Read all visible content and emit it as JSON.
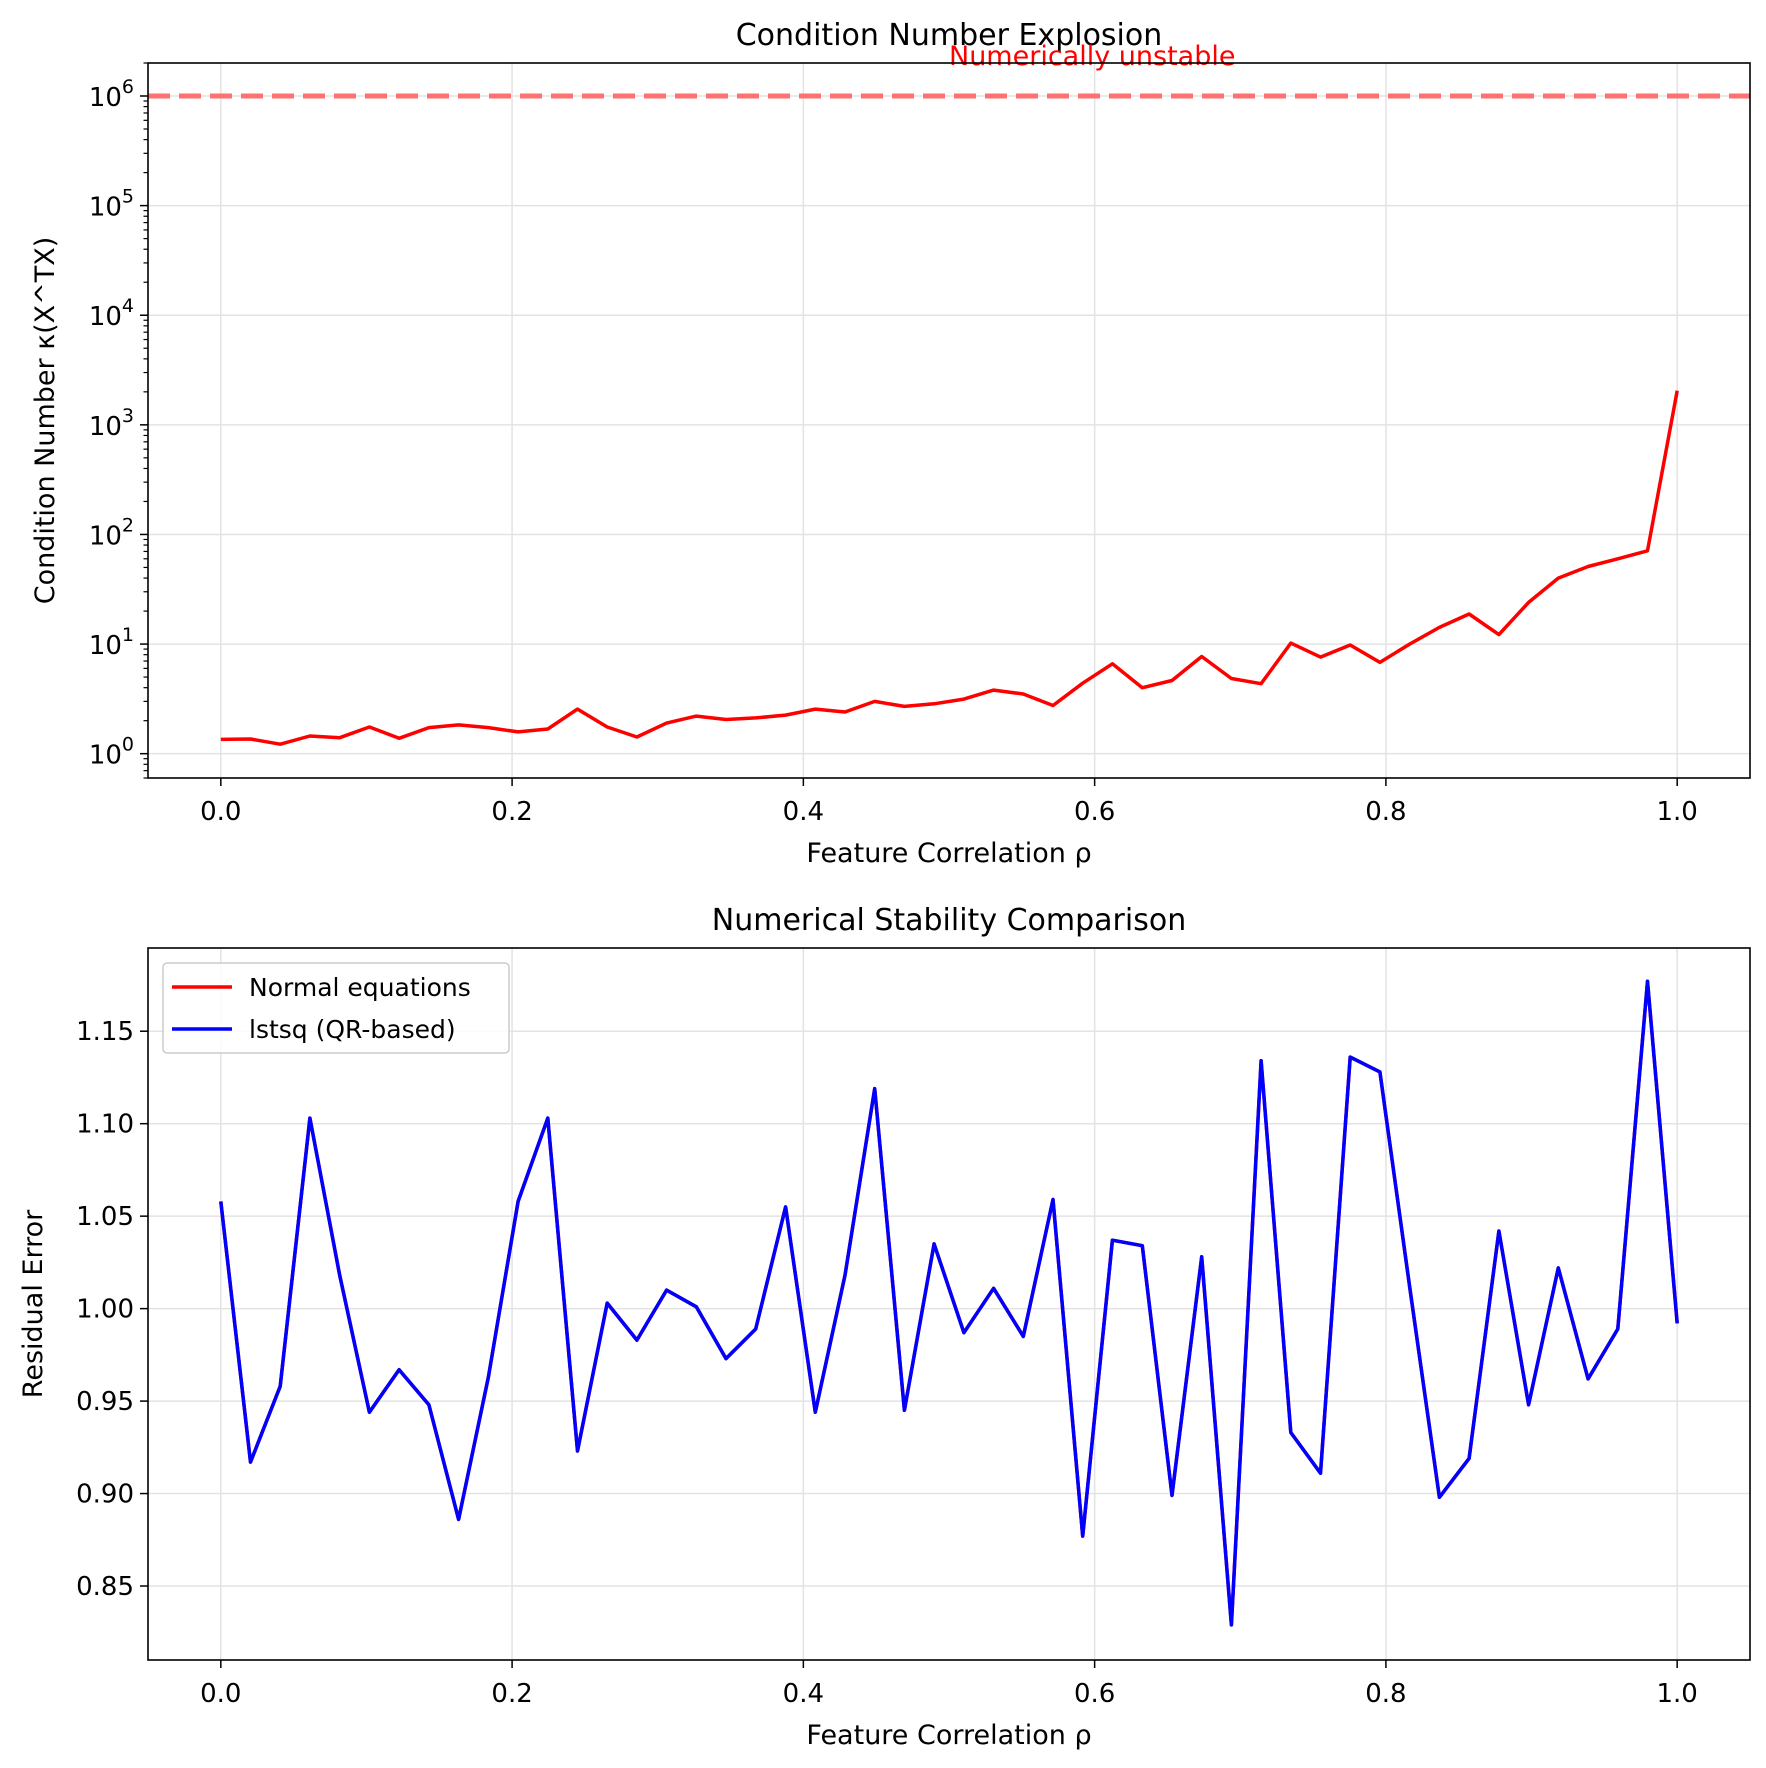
{
  "chart_data": [
    {
      "type": "line",
      "title": "Condition Number Explosion",
      "xlabel": "Feature Correlation ρ",
      "ylabel": "Condition Number κ(X^TX)",
      "yscale": "log",
      "xlim": [
        -0.05,
        1.05
      ],
      "ylim": [
        0.6,
        2000000
      ],
      "grid": true,
      "xticks": [
        "0.0",
        "0.2",
        "0.4",
        "0.6",
        "0.8",
        "1.0"
      ],
      "yticks": [
        {
          "value": 1,
          "base": "10",
          "exp": "0"
        },
        {
          "value": 10,
          "base": "10",
          "exp": "1"
        },
        {
          "value": 100,
          "base": "10",
          "exp": "2"
        },
        {
          "value": 1000,
          "base": "10",
          "exp": "3"
        },
        {
          "value": 10000,
          "base": "10",
          "exp": "4"
        },
        {
          "value": 100000,
          "base": "10",
          "exp": "5"
        },
        {
          "value": 1000000,
          "base": "10",
          "exp": "6"
        }
      ],
      "threshold": {
        "value": 1000000,
        "color": "#ff7070",
        "style": "dashed"
      },
      "annotation": {
        "text": "Numerically unstable",
        "x": 0.5,
        "value": 1000000,
        "color": "#ff0000"
      },
      "series": [
        {
          "color": "#ff0000",
          "x": [
            0.0,
            0.0204,
            0.0408,
            0.0612,
            0.0816,
            0.102,
            0.1224,
            0.1429,
            0.1633,
            0.1837,
            0.2041,
            0.2245,
            0.2449,
            0.2653,
            0.2857,
            0.3061,
            0.3265,
            0.3469,
            0.3673,
            0.3878,
            0.4082,
            0.4286,
            0.449,
            0.4694,
            0.4898,
            0.5102,
            0.5306,
            0.551,
            0.5714,
            0.5918,
            0.6122,
            0.6327,
            0.6531,
            0.6735,
            0.6939,
            0.7143,
            0.7347,
            0.7551,
            0.7755,
            0.7959,
            0.8163,
            0.8367,
            0.8571,
            0.8776,
            0.898,
            0.9184,
            0.9388,
            0.9592,
            0.9796,
            1.0
          ],
          "values": [
            1.35,
            1.36,
            1.22,
            1.45,
            1.4,
            1.75,
            1.38,
            1.73,
            1.83,
            1.73,
            1.58,
            1.68,
            2.55,
            1.75,
            1.42,
            1.9,
            2.2,
            2.05,
            2.12,
            2.25,
            2.55,
            2.4,
            3.0,
            2.7,
            2.85,
            3.15,
            3.8,
            3.5,
            2.75,
            4.4,
            6.6,
            4.0,
            4.65,
            7.7,
            4.85,
            4.35,
            10.2,
            7.6,
            9.8,
            6.8,
            10.0,
            14.2,
            18.8,
            12.2,
            24.0,
            40.0,
            51.0,
            60.0,
            71.0,
            2050.0
          ]
        }
      ]
    },
    {
      "type": "line",
      "title": "Numerical Stability Comparison",
      "xlabel": "Feature Correlation ρ",
      "ylabel": "Residual Error",
      "xlim": [
        -0.05,
        1.05
      ],
      "ylim": [
        0.81,
        1.195
      ],
      "grid": true,
      "legend": "top-left",
      "xticks": [
        "0.0",
        "0.2",
        "0.4",
        "0.6",
        "0.8",
        "1.0"
      ],
      "yticks": [
        "0.85",
        "0.90",
        "0.95",
        "1.00",
        "1.05",
        "1.10",
        "1.15"
      ],
      "x": [
        0.0,
        0.0204,
        0.0408,
        0.0612,
        0.0816,
        0.102,
        0.1224,
        0.1429,
        0.1633,
        0.1837,
        0.2041,
        0.2245,
        0.2449,
        0.2653,
        0.2857,
        0.3061,
        0.3265,
        0.3469,
        0.3673,
        0.3878,
        0.4082,
        0.4286,
        0.449,
        0.4694,
        0.4898,
        0.5102,
        0.5306,
        0.551,
        0.5714,
        0.5918,
        0.6122,
        0.6327,
        0.6531,
        0.6735,
        0.6939,
        0.7143,
        0.7347,
        0.7551,
        0.7755,
        0.7959,
        0.8163,
        0.8367,
        0.8571,
        0.8776,
        0.898,
        0.9184,
        0.9388,
        0.9592,
        0.9796,
        1.0
      ],
      "series": [
        {
          "name": "Normal equations",
          "color": "#ff0000",
          "values": [
            1.058,
            0.917,
            0.958,
            1.103,
            1.018,
            0.944,
            0.967,
            0.948,
            0.886,
            0.963,
            1.058,
            1.103,
            0.923,
            1.003,
            0.983,
            1.01,
            1.001,
            0.973,
            0.989,
            1.055,
            0.944,
            1.018,
            1.119,
            0.945,
            1.035,
            0.987,
            1.011,
            0.985,
            1.059,
            0.877,
            1.037,
            1.034,
            0.899,
            1.028,
            0.829,
            1.134,
            0.933,
            0.911,
            1.136,
            1.128,
            1.012,
            0.898,
            0.919,
            1.042,
            0.948,
            1.022,
            0.962,
            0.989,
            1.177,
            0.992
          ]
        },
        {
          "name": "lstsq (QR-based)",
          "color": "#0000ff",
          "values": [
            1.058,
            0.917,
            0.958,
            1.103,
            1.018,
            0.944,
            0.967,
            0.948,
            0.886,
            0.963,
            1.058,
            1.103,
            0.923,
            1.003,
            0.983,
            1.01,
            1.001,
            0.973,
            0.989,
            1.055,
            0.944,
            1.018,
            1.119,
            0.945,
            1.035,
            0.987,
            1.011,
            0.985,
            1.059,
            0.877,
            1.037,
            1.034,
            0.899,
            1.028,
            0.829,
            1.134,
            0.933,
            0.911,
            1.136,
            1.128,
            1.012,
            0.898,
            0.919,
            1.042,
            0.948,
            1.022,
            0.962,
            0.989,
            1.177,
            0.992
          ]
        }
      ]
    }
  ]
}
